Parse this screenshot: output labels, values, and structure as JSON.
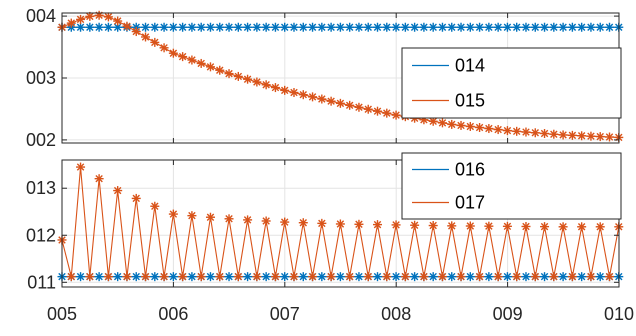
{
  "chart_data": [
    {
      "type": "line",
      "xlim": [
        5,
        10
      ],
      "ylim": [
        1.95,
        4.05
      ],
      "x_ticks": [
        "005",
        "006",
        "007",
        "008",
        "009",
        "010"
      ],
      "y_ticks": [
        {
          "value": 4,
          "label": "004"
        },
        {
          "value": 3,
          "label": "003"
        },
        {
          "value": 2,
          "label": "002"
        }
      ],
      "grid": true,
      "legend_position": "right",
      "series": [
        {
          "name": "014",
          "color": "#0072BD",
          "marker": "asterisk",
          "shape": "constant",
          "level": 3.82,
          "x_start": 5.0,
          "x_end": 10.0,
          "step": 0.0833
        },
        {
          "name": "015",
          "color": "#D95319",
          "marker": "asterisk",
          "shape": "decay",
          "x_start": 5.0,
          "x_end": 10.0,
          "step": 0.0833,
          "points": [
            [
              5.0,
              3.82
            ],
            [
              5.1,
              3.9
            ],
            [
              5.2,
              3.97
            ],
            [
              5.3,
              4.02
            ],
            [
              5.4,
              4.0
            ],
            [
              5.5,
              3.92
            ],
            [
              5.6,
              3.82
            ],
            [
              6.0,
              3.4
            ],
            [
              6.5,
              3.07
            ],
            [
              7.0,
              2.8
            ],
            [
              7.5,
              2.59
            ],
            [
              8.0,
              2.4
            ],
            [
              8.5,
              2.25
            ],
            [
              9.0,
              2.15
            ],
            [
              9.5,
              2.08
            ],
            [
              10.0,
              2.04
            ]
          ]
        }
      ]
    },
    {
      "type": "line",
      "xlim": [
        5,
        10
      ],
      "ylim": [
        0.9,
        3.6
      ],
      "x_ticks": [
        "005",
        "006",
        "007",
        "008",
        "009",
        "010"
      ],
      "y_ticks": [
        {
          "value": 3,
          "label": "013"
        },
        {
          "value": 2,
          "label": "012"
        },
        {
          "value": 1,
          "label": "011"
        }
      ],
      "grid": true,
      "legend_position": "top-right",
      "series": [
        {
          "name": "016",
          "color": "#0072BD",
          "marker": "asterisk",
          "shape": "constant",
          "level": 1.12,
          "x_start": 5.0,
          "x_end": 10.0,
          "step": 0.0833
        },
        {
          "name": "017",
          "color": "#D95319",
          "marker": "asterisk",
          "shape": "oscillation",
          "x_start": 5.0,
          "x_end": 10.0,
          "step": 0.0833,
          "base": 1.12,
          "peak_points": [
            [
              5.17,
              3.45
            ],
            [
              5.5,
              2.95
            ],
            [
              6.0,
              2.45
            ],
            [
              6.5,
              2.35
            ],
            [
              7.0,
              2.28
            ],
            [
              7.5,
              2.24
            ],
            [
              8.0,
              2.22
            ],
            [
              8.5,
              2.2
            ],
            [
              9.0,
              2.19
            ],
            [
              9.5,
              2.18
            ],
            [
              10.0,
              2.18
            ]
          ]
        }
      ]
    }
  ]
}
